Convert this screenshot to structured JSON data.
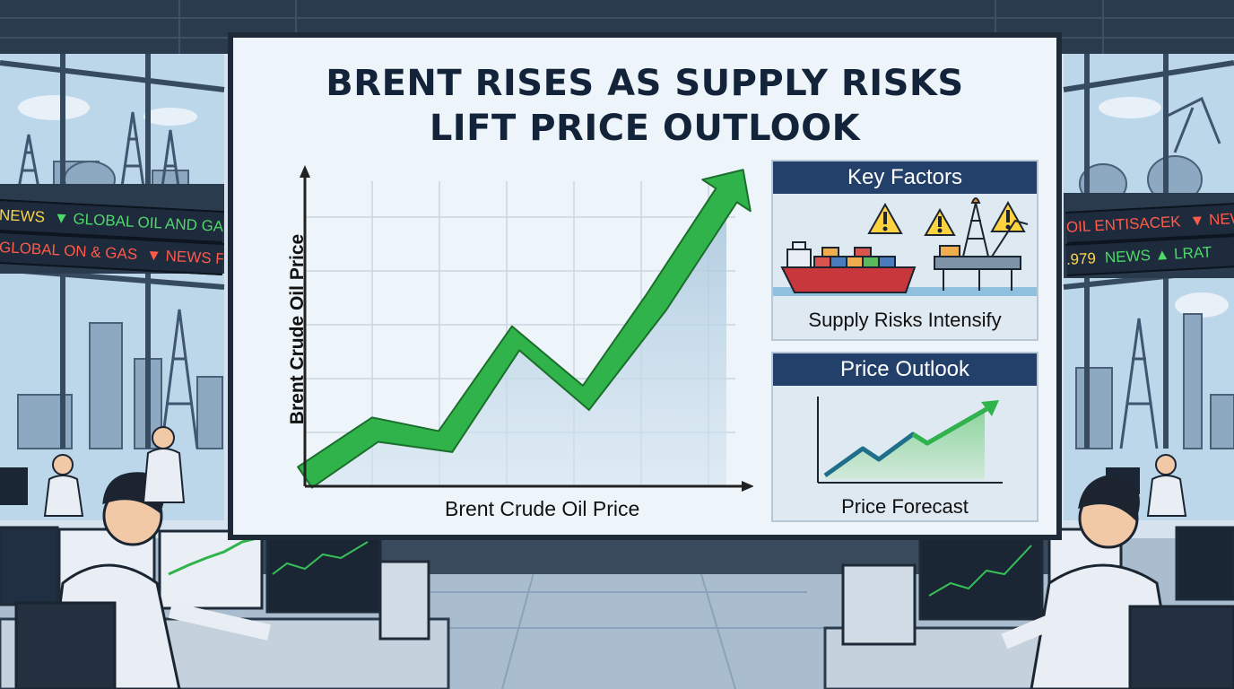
{
  "ticker_left": {
    "line1": [
      "NEWS",
      "▼ GLOBAL OIL AND GAS"
    ],
    "line2": [
      "GLOBAL ON & GAS",
      "▼ NEWS FR"
    ]
  },
  "ticker_right": {
    "line1": [
      "OIL ENTISACEK",
      "▼ NEWS"
    ],
    "line2": [
      ".979",
      "NEWS ▲ LRAT"
    ]
  },
  "screen": {
    "title_line1": "BRENT RISES AS SUPPLY RISKS",
    "title_line2": "LIFT PRICE OUTLOOK"
  },
  "main_chart": {
    "xlabel": "Brent Crude Oil Price",
    "ylabel": "Brent Crude Oil Price"
  },
  "key_factors": {
    "title": "Key Factors",
    "caption": "Supply Risks Intensify",
    "icons": [
      "cargo-ship-icon",
      "warning-icon",
      "oil-rig-icon"
    ]
  },
  "price_outlook": {
    "title": "Price Outlook",
    "caption": "Price Forecast"
  },
  "colors": {
    "trend_green": "#2fb34a",
    "panel_header": "#23406a",
    "screen_bg": "#eef5fa",
    "title_text": "#13243a"
  },
  "chart_data": {
    "type": "line",
    "x": [
      0,
      1,
      2,
      3,
      4,
      5,
      6
    ],
    "series": [
      {
        "values": [
          0,
          1.2,
          0.9,
          3.5,
          2.0,
          4.4,
          7.1
        ]
      }
    ],
    "xlabel": "Brent Crude Oil Price",
    "ylabel": "Brent Crude Oil Price",
    "grid": true
  }
}
